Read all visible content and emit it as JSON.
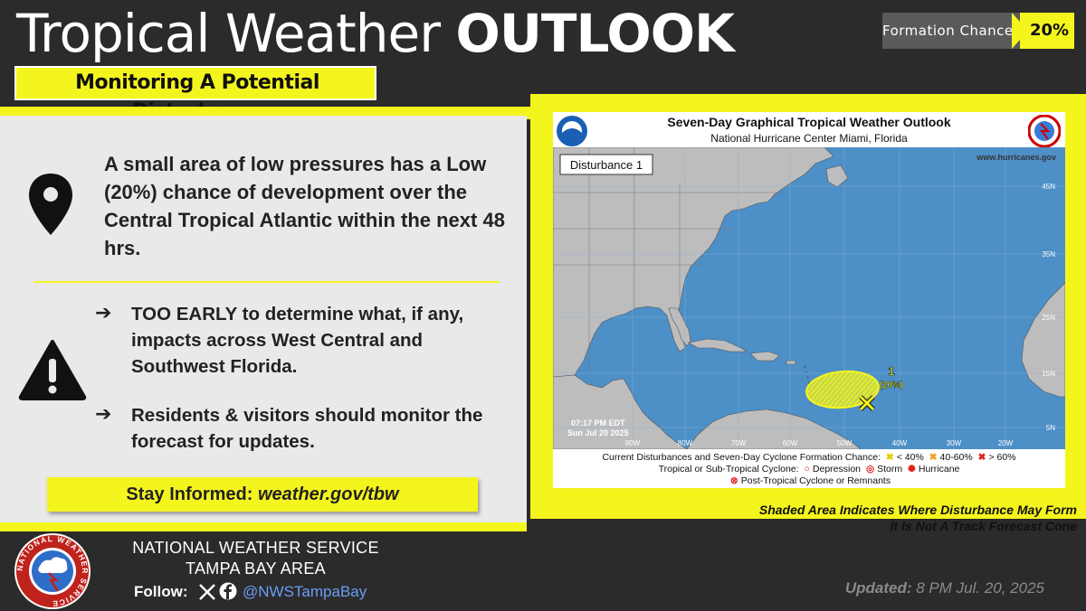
{
  "header": {
    "title_light": "Tropical Weather",
    "title_bold": "OUTLOOK",
    "subtitle": "Monitoring A Potential Disturbance",
    "formation_label": "Formation Chance:",
    "formation_value": "20%"
  },
  "summary": {
    "text": "A small area of low pressures has a Low (20%) chance of development over the Central Tropical Atlantic within the next 48 hrs."
  },
  "bullets": [
    {
      "bold": "TOO EARLY",
      "text": " to determine what, if any, impacts across West Central and Southwest Florida."
    },
    {
      "bold": "",
      "text": "Residents & visitors should monitor the forecast for updates."
    }
  ],
  "stay_informed": {
    "label": "Stay Informed: ",
    "link": "weather.gov/tbw"
  },
  "map": {
    "title": "Seven-Day Graphical Tropical Weather Outlook",
    "subtitle": "National Hurricane Center  Miami, Florida",
    "disturbance_label": "Disturbance 1",
    "website": "www.hurricanes.gov",
    "timestamp_line1": "07:17 PM EDT",
    "timestamp_line2": "Sun Jul 20 2025",
    "lat_labels": [
      "45N",
      "35N",
      "25N",
      "15N",
      "5N"
    ],
    "lon_labels": [
      "90W",
      "80W",
      "70W",
      "60W",
      "50W",
      "40W",
      "30W",
      "20W"
    ],
    "system_number": "1",
    "system_chance": "(20%)",
    "legend_line1": "Current Disturbances and Seven-Day Cyclone Formation Chance:",
    "legend_low": "< 40%",
    "legend_mid": "40-60%",
    "legend_high": "> 60%",
    "legend_line2": "Tropical or Sub-Tropical Cyclone:",
    "legend_depression": "Depression",
    "legend_storm": "Storm",
    "legend_hurricane": "Hurricane",
    "legend_line3": "Post-Tropical Cyclone or Remnants",
    "colors": {
      "ocean": "#4d8fc7",
      "land": "#bdbdbd",
      "low": "#f5f51e",
      "mid": "#f0a020",
      "high": "#e0201c"
    }
  },
  "notes": {
    "line1": "Shaded Area Indicates Where Disturbance May Form",
    "line2_pre": "It Is ",
    "line2_under": "Not",
    "line2_post": " A Track Forecast Cone"
  },
  "footer": {
    "org_line1": "NATIONAL WEATHER SERVICE",
    "org_line2": "TAMPA BAY AREA",
    "follow": "Follow:",
    "handle": "@NWSTampaBay",
    "updated_label": "Updated:",
    "updated_value": " 8 PM Jul. 20, 2025",
    "logo_text": "NATIONAL WEATHER SERVICE"
  },
  "colors": {
    "accent": "#f5f51e",
    "dark": "#2b2b2b",
    "panel": "#e9e9e9"
  }
}
